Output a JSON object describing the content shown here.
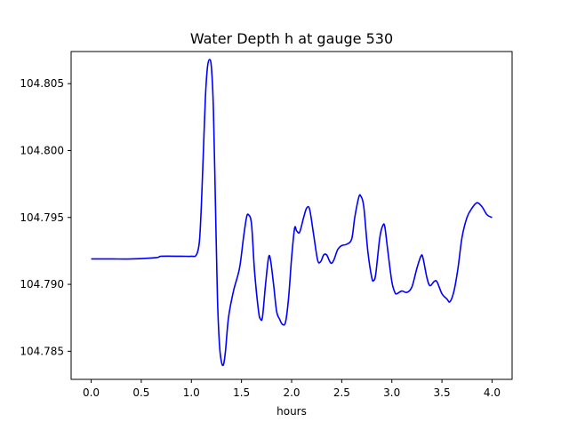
{
  "chart_data": {
    "type": "line",
    "title": "Water Depth h at gauge 530",
    "xlabel": "hours",
    "ylabel": "",
    "xlim": [
      -0.2,
      4.2
    ],
    "ylim": [
      104.7829,
      104.8074
    ],
    "xticks": [
      0.0,
      0.5,
      1.0,
      1.5,
      2.0,
      2.5,
      3.0,
      3.5,
      4.0
    ],
    "xtick_labels": [
      "0.0",
      "0.5",
      "1.0",
      "1.5",
      "2.0",
      "2.5",
      "3.0",
      "3.5",
      "4.0"
    ],
    "yticks": [
      104.785,
      104.79,
      104.795,
      104.8,
      104.805
    ],
    "ytick_labels": [
      "104.785",
      "104.790",
      "104.795",
      "104.800",
      "104.805"
    ],
    "grid": false,
    "legend": "none",
    "series": [
      {
        "color": "#0000ff",
        "points": [
          [
            0.0,
            104.7919
          ],
          [
            0.2,
            104.7919
          ],
          [
            0.4,
            104.7919
          ],
          [
            0.65,
            104.792
          ],
          [
            0.7,
            104.7921
          ],
          [
            0.9,
            104.7921
          ],
          [
            1.0,
            104.7921
          ],
          [
            1.05,
            104.7922
          ],
          [
            1.08,
            104.7932
          ],
          [
            1.1,
            104.796
          ],
          [
            1.12,
            104.8
          ],
          [
            1.14,
            104.804
          ],
          [
            1.16,
            104.8062
          ],
          [
            1.18,
            104.8068
          ],
          [
            1.2,
            104.8062
          ],
          [
            1.22,
            104.803
          ],
          [
            1.24,
            104.796
          ],
          [
            1.26,
            104.789
          ],
          [
            1.28,
            104.7855
          ],
          [
            1.3,
            104.7842
          ],
          [
            1.32,
            104.784
          ],
          [
            1.34,
            104.785
          ],
          [
            1.37,
            104.7875
          ],
          [
            1.42,
            104.7895
          ],
          [
            1.48,
            104.7912
          ],
          [
            1.52,
            104.7935
          ],
          [
            1.55,
            104.795
          ],
          [
            1.57,
            104.7952
          ],
          [
            1.6,
            104.7945
          ],
          [
            1.63,
            104.791
          ],
          [
            1.67,
            104.788
          ],
          [
            1.69,
            104.7874
          ],
          [
            1.71,
            104.7876
          ],
          [
            1.74,
            104.79
          ],
          [
            1.77,
            104.792
          ],
          [
            1.79,
            104.7918
          ],
          [
            1.82,
            104.79
          ],
          [
            1.85,
            104.788
          ],
          [
            1.88,
            104.7874
          ],
          [
            1.91,
            104.787
          ],
          [
            1.94,
            104.7872
          ],
          [
            1.97,
            104.789
          ],
          [
            2.0,
            104.792
          ],
          [
            2.03,
            104.7942
          ],
          [
            2.05,
            104.794
          ],
          [
            2.08,
            104.7939
          ],
          [
            2.12,
            104.795
          ],
          [
            2.15,
            104.7957
          ],
          [
            2.18,
            104.7956
          ],
          [
            2.22,
            104.7937
          ],
          [
            2.26,
            104.7918
          ],
          [
            2.29,
            104.7917
          ],
          [
            2.32,
            104.7922
          ],
          [
            2.35,
            104.7922
          ],
          [
            2.39,
            104.7916
          ],
          [
            2.42,
            104.7918
          ],
          [
            2.46,
            104.7926
          ],
          [
            2.5,
            104.7929
          ],
          [
            2.55,
            104.793
          ],
          [
            2.6,
            104.7934
          ],
          [
            2.63,
            104.795
          ],
          [
            2.67,
            104.7965
          ],
          [
            2.69,
            104.7966
          ],
          [
            2.72,
            104.7958
          ],
          [
            2.76,
            104.7925
          ],
          [
            2.8,
            104.7905
          ],
          [
            2.82,
            104.7903
          ],
          [
            2.84,
            104.7908
          ],
          [
            2.88,
            104.7935
          ],
          [
            2.91,
            104.7944
          ],
          [
            2.93,
            104.7943
          ],
          [
            2.96,
            104.7925
          ],
          [
            3.0,
            104.7902
          ],
          [
            3.03,
            104.7894
          ],
          [
            3.05,
            104.7893
          ],
          [
            3.1,
            104.7895
          ],
          [
            3.15,
            104.7894
          ],
          [
            3.2,
            104.7898
          ],
          [
            3.25,
            104.7912
          ],
          [
            3.29,
            104.7921
          ],
          [
            3.31,
            104.792
          ],
          [
            3.35,
            104.7905
          ],
          [
            3.38,
            104.7899
          ],
          [
            3.42,
            104.7902
          ],
          [
            3.45,
            104.7902
          ],
          [
            3.5,
            104.7893
          ],
          [
            3.55,
            104.7889
          ],
          [
            3.58,
            104.7887
          ],
          [
            3.62,
            104.7895
          ],
          [
            3.66,
            104.7912
          ],
          [
            3.7,
            104.7935
          ],
          [
            3.75,
            104.795
          ],
          [
            3.8,
            104.7957
          ],
          [
            3.85,
            104.7961
          ],
          [
            3.9,
            104.7958
          ],
          [
            3.95,
            104.7952
          ],
          [
            4.0,
            104.795
          ]
        ]
      }
    ]
  }
}
